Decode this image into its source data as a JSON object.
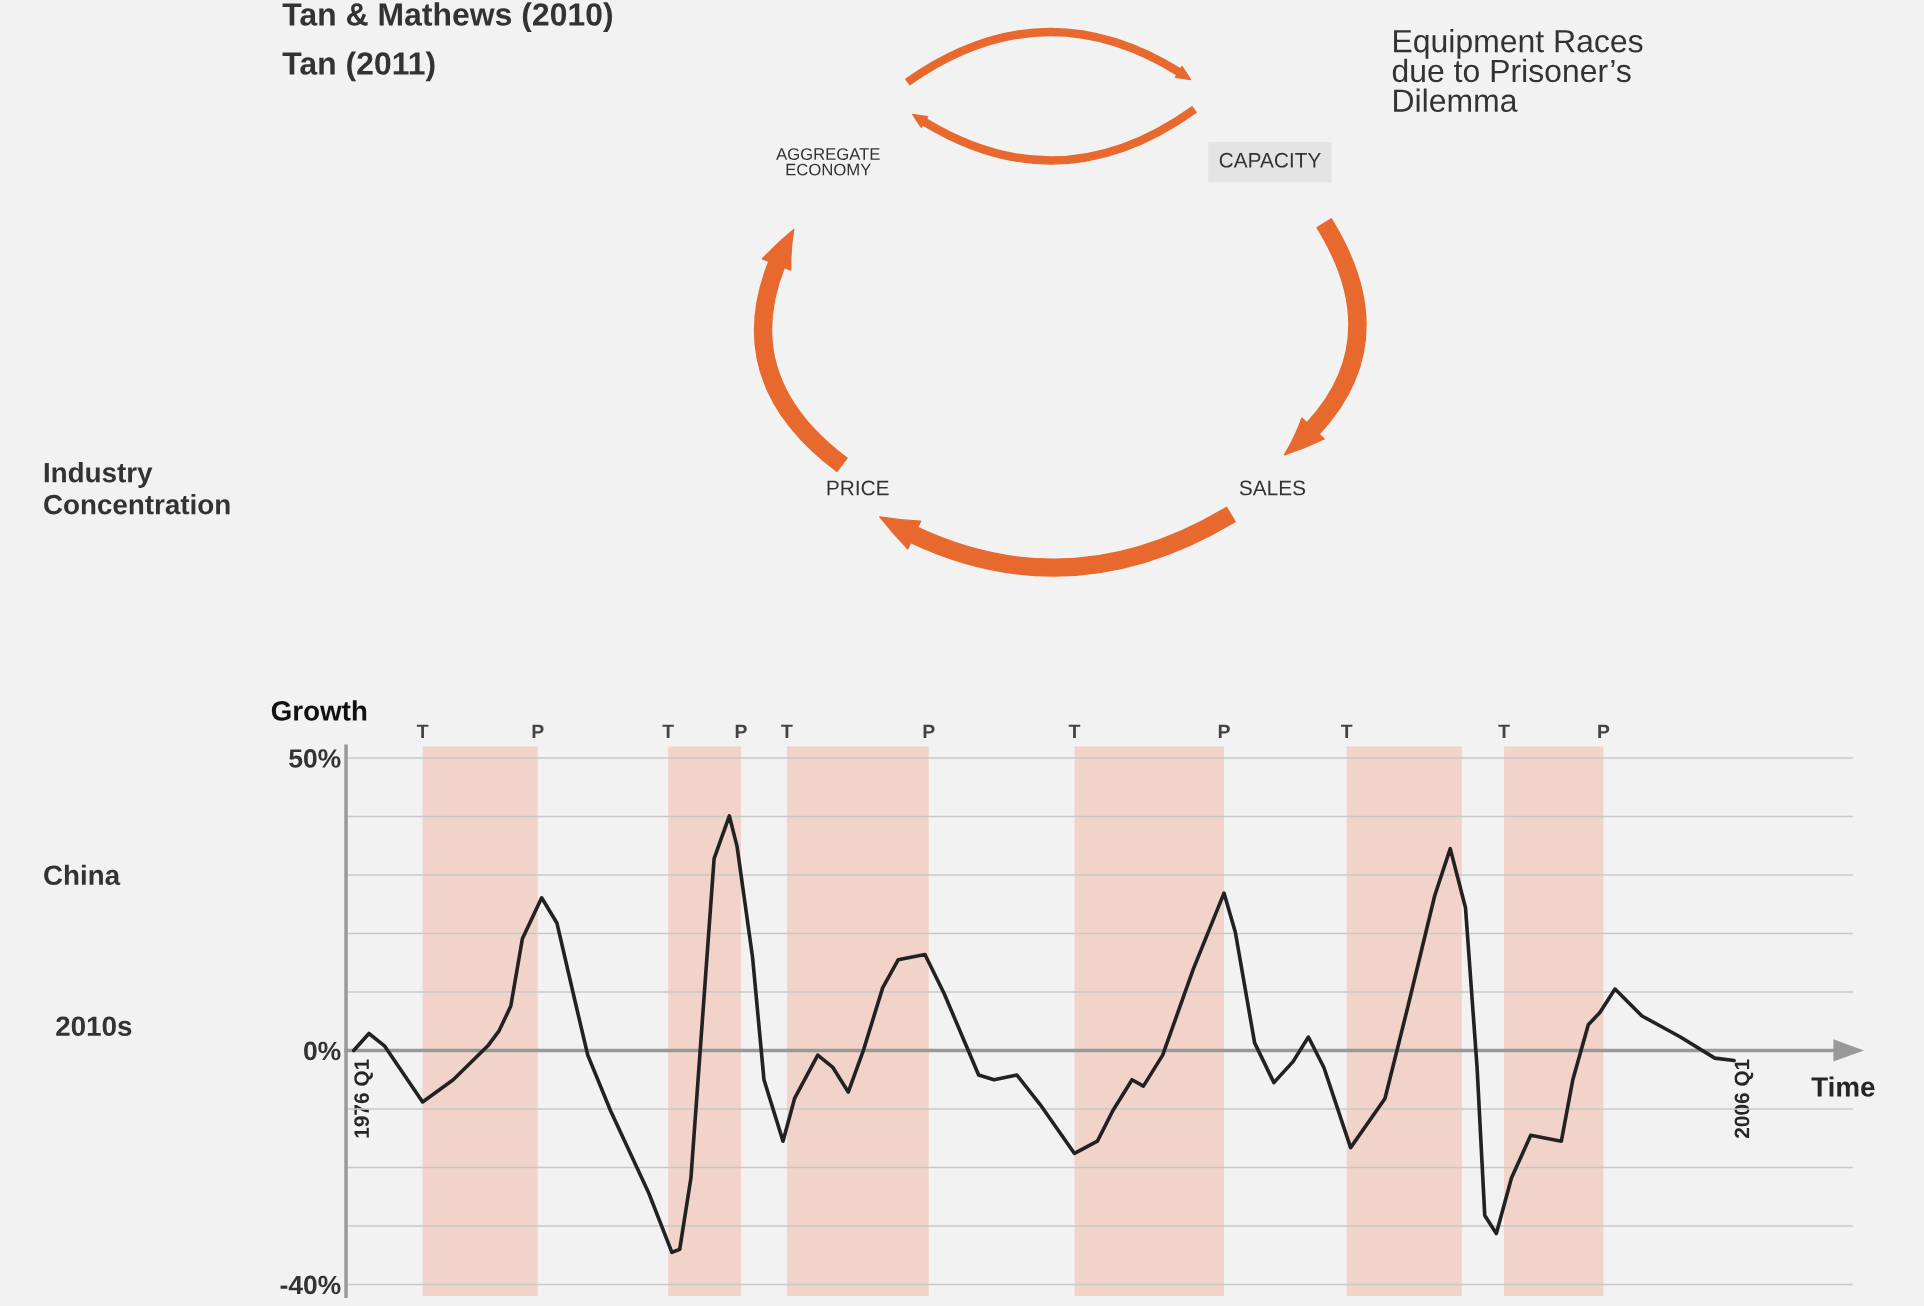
{
  "chart_data": [
    {
      "type": "other",
      "title": "Tan & Mathews (2010)",
      "subtitle": "Tan (2011)",
      "annotations": [
        "Equipment Races\ndue to Prisoner’s\nDilemma",
        "AGGREGATE\nECONOMY",
        "CAPACITY",
        "SALES",
        "PRICE",
        "Industry\nConcentration",
        "China",
        "2010s"
      ]
    },
    {
      "type": "line",
      "ylabel": "Growth",
      "xlabel": "Time",
      "x": [
        "1976-01",
        "1976-05",
        "1976-09",
        "1977-07",
        "1978-03",
        "1978-12",
        "1979-03",
        "1979-06",
        "1979-09",
        "1980-02",
        "1980-06",
        "1980-11",
        "1981-02",
        "1981-08",
        "1982-06",
        "1982-12",
        "1983-02",
        "1983-05",
        "1983-08",
        "1983-11",
        "1984-03",
        "1984-05",
        "1984-09",
        "1984-12",
        "1985-05",
        "1985-08",
        "1986-02",
        "1986-06",
        "1986-10",
        "1987-02",
        "1987-07",
        "1987-11",
        "1988-06",
        "1988-11",
        "1989-08",
        "1989-12",
        "1990-06",
        "1990-12",
        "1991-09",
        "1992-03",
        "1992-07",
        "1992-12",
        "1993-03",
        "1993-08",
        "1994-04",
        "1994-12",
        "1995-03",
        "1995-08",
        "1996-01",
        "1996-06",
        "1996-10",
        "1997-02",
        "1997-09",
        "1998-06",
        "1998-12",
        "1999-07",
        "1999-11",
        "2000-03",
        "2000-06",
        "2000-08",
        "2000-11",
        "2001-03",
        "2001-08",
        "2002-04",
        "2002-07",
        "2002-11",
        "2003-02",
        "2003-06",
        "2004-01",
        "2004-11",
        "2005-08",
        "2006-01"
      ],
      "series": [
        {
          "color": "#222222",
          "values": [
            0.0,
            2.9,
            0.8,
            -8.8,
            -5.0,
            0.8,
            3.4,
            7.6,
            19.1,
            26.1,
            21.8,
            7.6,
            -0.8,
            -10.3,
            -24.4,
            -34.5,
            -34.0,
            -21.8,
            5.5,
            32.8,
            40.1,
            34.9,
            16.0,
            -5.0,
            -15.5,
            -8.2,
            -0.8,
            -2.9,
            -7.1,
            0.2,
            10.7,
            15.5,
            16.4,
            9.7,
            -4.2,
            -5.0,
            -4.2,
            -9.2,
            -17.6,
            -15.5,
            -10.3,
            -5.0,
            -6.1,
            -0.8,
            13.9,
            26.9,
            20.2,
            1.3,
            -5.5,
            -1.9,
            2.3,
            -2.9,
            -16.6,
            -8.2,
            7.6,
            26.5,
            34.5,
            24.4,
            -2.9,
            -28.2,
            -31.3,
            -21.8,
            -14.5,
            -15.5,
            -5.0,
            4.4,
            6.5,
            10.5,
            5.9,
            2.3,
            -1.3,
            -1.7
          ]
        }
      ],
      "xlim": [
        "1975-11",
        "2008-08"
      ],
      "ylim": [
        -42,
        52
      ],
      "xticks": [
        {
          "value": "1976-01",
          "label": "1976 Q1"
        },
        {
          "value": "2006-01",
          "label": "2006 Q1"
        }
      ],
      "yticks": [
        {
          "value": -40,
          "label": "-40%"
        },
        {
          "value": -30,
          "label": null
        },
        {
          "value": -20,
          "label": null
        },
        {
          "value": -10,
          "label": null
        },
        {
          "value": 0,
          "label": "0%"
        },
        {
          "value": 10,
          "label": null
        },
        {
          "value": 20,
          "label": null
        },
        {
          "value": 30,
          "label": null
        },
        {
          "value": 40,
          "label": null
        },
        {
          "value": 50,
          "label": "50%"
        }
      ],
      "grid": "y",
      "bands": [
        {
          "axis": "x",
          "from": "1977-07",
          "to": "1980-01",
          "color": "#f2d3c9"
        },
        {
          "axis": "x",
          "from": "1982-11",
          "to": "1984-06",
          "color": "#f2d3c9"
        },
        {
          "axis": "x",
          "from": "1985-06",
          "to": "1988-07",
          "color": "#f2d3c9"
        },
        {
          "axis": "x",
          "from": "1991-09",
          "to": "1994-12",
          "color": "#f2d3c9"
        },
        {
          "axis": "x",
          "from": "1997-08",
          "to": "2000-02",
          "color": "#f2d3c9"
        },
        {
          "axis": "x",
          "from": "2001-01",
          "to": "2003-03",
          "color": "#f2d3c9"
        }
      ],
      "annotations": [
        {
          "text": "T",
          "x": "1977-07",
          "y": 52
        },
        {
          "text": "P",
          "x": "1980-01",
          "y": 52
        },
        {
          "text": "T",
          "x": "1982-11",
          "y": 52
        },
        {
          "text": "P",
          "x": "1984-06",
          "y": 52
        },
        {
          "text": "T",
          "x": "1985-06",
          "y": 52
        },
        {
          "text": "P",
          "x": "1988-07",
          "y": 52
        },
        {
          "text": "T",
          "x": "1991-09",
          "y": 52
        },
        {
          "text": "P",
          "x": "1994-12",
          "y": 52
        },
        {
          "text": "T",
          "x": "1997-08",
          "y": 52
        },
        {
          "text": "T",
          "x": "2001-01",
          "y": 52
        },
        {
          "text": "P",
          "x": "2003-03",
          "y": 52
        }
      ]
    }
  ]
}
